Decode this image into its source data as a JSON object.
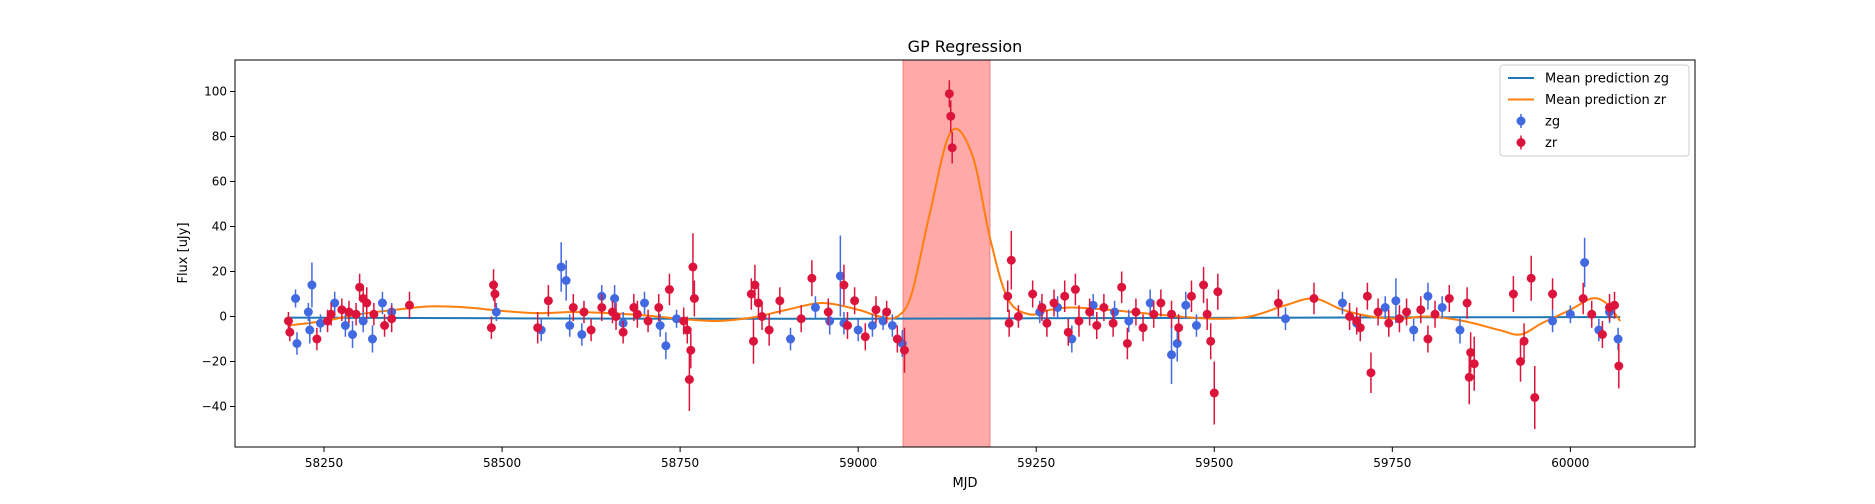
{
  "chart_data": {
    "type": "scatter",
    "title": "GP Regression",
    "xlabel": "MJD",
    "ylabel": "Flux [uJy]",
    "xlim": [
      58125,
      60175
    ],
    "ylim": [
      -58,
      114
    ],
    "xticks": [
      58250,
      58500,
      58750,
      59000,
      59250,
      59500,
      59750,
      60000
    ],
    "yticks": [
      -40,
      -20,
      0,
      20,
      40,
      60,
      80,
      100
    ],
    "grid": false,
    "legend_position": "top-right",
    "highlight_span": {
      "x": [
        59063,
        59185
      ],
      "color": "#ff9a9a"
    },
    "colors": {
      "mean_zg": "#1f77b4",
      "mean_zr": "#ff7f0e",
      "zg": "#4169e1",
      "zr": "#dc143c"
    },
    "legend": [
      {
        "label": "Mean prediction zg",
        "kind": "line",
        "color": "#1f77b4"
      },
      {
        "label": "Mean prediction zr",
        "kind": "line",
        "color": "#ff7f0e"
      },
      {
        "label": "zg",
        "kind": "errorbar",
        "color": "#4169e1"
      },
      {
        "label": "zr",
        "kind": "errorbar",
        "color": "#dc143c"
      }
    ],
    "series": [
      {
        "name": "Mean prediction zg",
        "kind": "line",
        "points": [
          [
            58200,
            -0.5
          ],
          [
            58500,
            -0.8
          ],
          [
            58750,
            -1.0
          ],
          [
            59000,
            -1.0
          ],
          [
            59250,
            -0.8
          ],
          [
            59500,
            -0.6
          ],
          [
            59750,
            -0.4
          ],
          [
            60000,
            -0.3
          ],
          [
            60070,
            -0.3
          ]
        ]
      },
      {
        "name": "Mean prediction zr",
        "kind": "line",
        "points": [
          [
            58200,
            -4
          ],
          [
            58250,
            -2
          ],
          [
            58300,
            1
          ],
          [
            58350,
            3
          ],
          [
            58400,
            4.5
          ],
          [
            58450,
            4
          ],
          [
            58500,
            2.5
          ],
          [
            58550,
            1.5
          ],
          [
            58600,
            2
          ],
          [
            58650,
            1.5
          ],
          [
            58700,
            0.5
          ],
          [
            58750,
            -1
          ],
          [
            58800,
            -2
          ],
          [
            58850,
            -0.5
          ],
          [
            58900,
            3
          ],
          [
            58950,
            6
          ],
          [
            59000,
            3
          ],
          [
            59030,
            0
          ],
          [
            59055,
            0
          ],
          [
            59075,
            10
          ],
          [
            59100,
            45
          ],
          [
            59130,
            82
          ],
          [
            59160,
            72
          ],
          [
            59185,
            35
          ],
          [
            59210,
            8
          ],
          [
            59240,
            1
          ],
          [
            59270,
            3
          ],
          [
            59300,
            4
          ],
          [
            59350,
            3
          ],
          [
            59400,
            1.5
          ],
          [
            59450,
            0
          ],
          [
            59500,
            -1
          ],
          [
            59550,
            0
          ],
          [
            59600,
            5
          ],
          [
            59640,
            8
          ],
          [
            59680,
            3
          ],
          [
            59720,
            0
          ],
          [
            59760,
            -1
          ],
          [
            59800,
            0
          ],
          [
            59850,
            -2
          ],
          [
            59900,
            -6
          ],
          [
            59930,
            -8
          ],
          [
            59960,
            -3
          ],
          [
            60000,
            3
          ],
          [
            60030,
            8
          ],
          [
            60050,
            6
          ],
          [
            60070,
            -2
          ]
        ]
      },
      {
        "name": "zg",
        "kind": "errorbar",
        "points": [
          [
            58210,
            8,
            4
          ],
          [
            58212,
            -12,
            5
          ],
          [
            58228,
            2,
            4
          ],
          [
            58233,
            14,
            10
          ],
          [
            58230,
            -6,
            6
          ],
          [
            58245,
            -3,
            4
          ],
          [
            58265,
            6,
            5
          ],
          [
            58280,
            -4,
            5
          ],
          [
            58290,
            -8,
            6
          ],
          [
            58305,
            -2,
            5
          ],
          [
            58318,
            -10,
            6
          ],
          [
            58332,
            6,
            5
          ],
          [
            58345,
            2,
            4
          ],
          [
            58492,
            2,
            4
          ],
          [
            58555,
            -6,
            5
          ],
          [
            58583,
            22,
            11
          ],
          [
            58590,
            16,
            9
          ],
          [
            58595,
            -4,
            5
          ],
          [
            58612,
            -8,
            5
          ],
          [
            58640,
            9,
            5
          ],
          [
            58658,
            8,
            6
          ],
          [
            58670,
            -3,
            5
          ],
          [
            58700,
            6,
            5
          ],
          [
            58722,
            -4,
            5
          ],
          [
            58730,
            -13,
            6
          ],
          [
            58745,
            -1,
            4
          ],
          [
            58905,
            -10,
            5
          ],
          [
            58940,
            4,
            5
          ],
          [
            58960,
            -2,
            6
          ],
          [
            58975,
            18,
            18
          ],
          [
            58980,
            -3,
            5
          ],
          [
            59000,
            -6,
            5
          ],
          [
            59020,
            -4,
            5
          ],
          [
            59035,
            -2,
            4
          ],
          [
            59048,
            -4,
            5
          ],
          [
            59062,
            -12,
            6
          ],
          [
            59255,
            2,
            5
          ],
          [
            59280,
            4,
            5
          ],
          [
            59300,
            -10,
            6
          ],
          [
            59330,
            5,
            5
          ],
          [
            59360,
            2,
            5
          ],
          [
            59380,
            -2,
            5
          ],
          [
            59410,
            6,
            6
          ],
          [
            59440,
            -17,
            13
          ],
          [
            59448,
            -12,
            8
          ],
          [
            59460,
            5,
            6
          ],
          [
            59475,
            -4,
            5
          ],
          [
            59600,
            -1,
            5
          ],
          [
            59680,
            6,
            5
          ],
          [
            59700,
            -3,
            5
          ],
          [
            59740,
            4,
            5
          ],
          [
            59755,
            7,
            10
          ],
          [
            59780,
            -6,
            5
          ],
          [
            59800,
            9,
            6
          ],
          [
            59820,
            4,
            5
          ],
          [
            59845,
            -6,
            6
          ],
          [
            59975,
            -2,
            5
          ],
          [
            60000,
            1,
            4
          ],
          [
            60020,
            24,
            11
          ],
          [
            60040,
            -6,
            5
          ],
          [
            60055,
            2,
            5
          ],
          [
            60067,
            -10,
            5
          ]
        ]
      },
      {
        "name": "zr",
        "kind": "errorbar",
        "points": [
          [
            58200,
            -2,
            4
          ],
          [
            58202,
            -7,
            4
          ],
          [
            58240,
            -10,
            5
          ],
          [
            58255,
            -2,
            5
          ],
          [
            58260,
            1,
            5
          ],
          [
            58275,
            3,
            5
          ],
          [
            58285,
            2,
            5
          ],
          [
            58295,
            1,
            5
          ],
          [
            58300,
            13,
            6
          ],
          [
            58305,
            8,
            6
          ],
          [
            58310,
            6,
            7
          ],
          [
            58320,
            1,
            5
          ],
          [
            58335,
            -4,
            5
          ],
          [
            58345,
            -1,
            6
          ],
          [
            58370,
            5,
            6
          ],
          [
            58488,
            14,
            7
          ],
          [
            58490,
            10,
            6
          ],
          [
            58485,
            -5,
            5
          ],
          [
            58550,
            -5,
            7
          ],
          [
            58565,
            7,
            7
          ],
          [
            58600,
            4,
            6
          ],
          [
            58615,
            2,
            5
          ],
          [
            58625,
            -6,
            5
          ],
          [
            58640,
            4,
            6
          ],
          [
            58655,
            2,
            5
          ],
          [
            58660,
            0,
            6
          ],
          [
            58670,
            -7,
            5
          ],
          [
            58685,
            4,
            6
          ],
          [
            58690,
            1,
            6
          ],
          [
            58705,
            -2,
            5
          ],
          [
            58720,
            4,
            6
          ],
          [
            58735,
            12,
            7
          ],
          [
            58755,
            -2,
            6
          ],
          [
            58760,
            -6,
            6
          ],
          [
            58763,
            -28,
            14
          ],
          [
            58768,
            22,
            15
          ],
          [
            58770,
            8,
            8
          ],
          [
            58765,
            -15,
            8
          ],
          [
            58850,
            10,
            7
          ],
          [
            58853,
            -11,
            10
          ],
          [
            58855,
            14,
            9
          ],
          [
            58860,
            6,
            7
          ],
          [
            58865,
            0,
            6
          ],
          [
            58875,
            -6,
            7
          ],
          [
            58890,
            7,
            6
          ],
          [
            58920,
            -1,
            6
          ],
          [
            58935,
            17,
            8
          ],
          [
            58958,
            2,
            6
          ],
          [
            58980,
            14,
            9
          ],
          [
            58985,
            -4,
            6
          ],
          [
            58995,
            7,
            6
          ],
          [
            59010,
            -9,
            6
          ],
          [
            59025,
            3,
            6
          ],
          [
            59040,
            2,
            5
          ],
          [
            59055,
            -10,
            6
          ],
          [
            59065,
            -15,
            10
          ],
          [
            59128,
            99,
            6
          ],
          [
            59130,
            89,
            7
          ],
          [
            59132,
            75,
            7
          ],
          [
            59210,
            9,
            7
          ],
          [
            59215,
            25,
            13
          ],
          [
            59212,
            -3,
            6
          ],
          [
            59225,
            0,
            5
          ],
          [
            59245,
            10,
            6
          ],
          [
            59258,
            4,
            6
          ],
          [
            59265,
            -3,
            6
          ],
          [
            59275,
            6,
            6
          ],
          [
            59290,
            9,
            7
          ],
          [
            59295,
            -7,
            6
          ],
          [
            59305,
            12,
            7
          ],
          [
            59310,
            -2,
            7
          ],
          [
            59325,
            2,
            6
          ],
          [
            59335,
            -4,
            6
          ],
          [
            59345,
            4,
            6
          ],
          [
            59358,
            -3,
            6
          ],
          [
            59370,
            13,
            7
          ],
          [
            59378,
            -12,
            7
          ],
          [
            59390,
            2,
            6
          ],
          [
            59400,
            -5,
            6
          ],
          [
            59415,
            1,
            6
          ],
          [
            59425,
            6,
            6
          ],
          [
            59440,
            1,
            6
          ],
          [
            59450,
            -5,
            6
          ],
          [
            59468,
            9,
            7
          ],
          [
            59485,
            14,
            8
          ],
          [
            59490,
            1,
            7
          ],
          [
            59495,
            -11,
            8
          ],
          [
            59500,
            -34,
            14
          ],
          [
            59505,
            11,
            8
          ],
          [
            59590,
            6,
            6
          ],
          [
            59640,
            8,
            7
          ],
          [
            59690,
            0,
            6
          ],
          [
            59700,
            -2,
            6
          ],
          [
            59705,
            -5,
            6
          ],
          [
            59715,
            9,
            6
          ],
          [
            59720,
            -25,
            9
          ],
          [
            59730,
            2,
            6
          ],
          [
            59745,
            -3,
            6
          ],
          [
            59760,
            -1,
            6
          ],
          [
            59770,
            2,
            6
          ],
          [
            59790,
            3,
            6
          ],
          [
            59800,
            -10,
            6
          ],
          [
            59810,
            1,
            6
          ],
          [
            59830,
            8,
            6
          ],
          [
            59855,
            6,
            7
          ],
          [
            59858,
            -27,
            12
          ],
          [
            59860,
            -16,
            9
          ],
          [
            59865,
            -21,
            12
          ],
          [
            59920,
            10,
            8
          ],
          [
            59930,
            -20,
            9
          ],
          [
            59935,
            -11,
            8
          ],
          [
            59945,
            17,
            10
          ],
          [
            59950,
            -36,
            14
          ],
          [
            59975,
            10,
            7
          ],
          [
            60018,
            8,
            7
          ],
          [
            60030,
            1,
            6
          ],
          [
            60045,
            -8,
            6
          ],
          [
            60055,
            4,
            6
          ],
          [
            60062,
            5,
            6
          ],
          [
            60068,
            -22,
            10
          ]
        ]
      }
    ]
  }
}
